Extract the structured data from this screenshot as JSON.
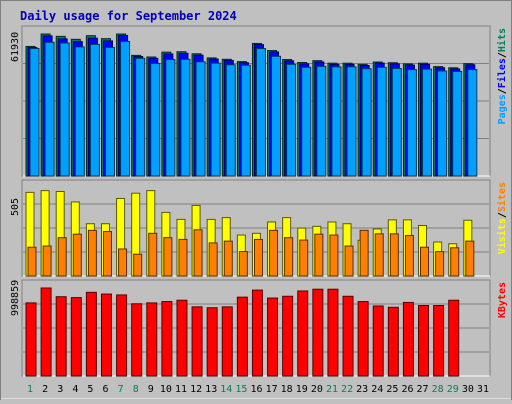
{
  "chart_data": {
    "type": "bar",
    "title": "Daily usage for September 2024",
    "categories": [
      "1",
      "2",
      "3",
      "4",
      "5",
      "6",
      "7",
      "8",
      "9",
      "10",
      "11",
      "12",
      "13",
      "14",
      "15",
      "16",
      "17",
      "18",
      "19",
      "20",
      "21",
      "22",
      "23",
      "24",
      "25",
      "26",
      "27",
      "28",
      "29",
      "30",
      "31"
    ],
    "weekend_days": [
      "1",
      "7",
      "8",
      "14",
      "15",
      "21",
      "22",
      "28",
      "29"
    ],
    "panels": [
      {
        "id": "pages-files-hits",
        "ymax_label": "61930",
        "ymax": 61930,
        "legend": [
          {
            "text": "Pages",
            "color": "#00a0ff"
          },
          {
            "text": "Files",
            "color": "#0000ff"
          },
          {
            "text": "Hits",
            "color": "#00805c"
          }
        ],
        "series": [
          {
            "name": "Hits",
            "color": "#00805c",
            "values": [
              56500,
              61930,
              60900,
              59600,
              61200,
              59900,
              61930,
              52600,
              51900,
              54000,
              54200,
              53300,
              51500,
              50900,
              49900,
              57800,
              54700,
              50800,
              49500,
              50300,
              49200,
              49200,
              48700,
              49700,
              49400,
              48900,
              49200,
              47700,
              47200,
              49000,
              0
            ]
          },
          {
            "name": "Files",
            "color": "#0000ff",
            "values": [
              56000,
              61100,
              59800,
              58600,
              60100,
              58900,
              61300,
              52100,
              51300,
              53200,
              53500,
              52700,
              51000,
              50400,
              49400,
              57300,
              54100,
              50200,
              48900,
              49700,
              48700,
              48700,
              48200,
              49200,
              48900,
              48400,
              48700,
              47200,
              46700,
              48500,
              0
            ]
          },
          {
            "name": "Pages",
            "color": "#00a0ff",
            "values": [
              55600,
              58300,
              58000,
              56300,
              57400,
              56100,
              58700,
              51300,
              49100,
              50800,
              50900,
              49800,
              49200,
              48500,
              48300,
              55600,
              52200,
              48700,
              47400,
              47800,
              47600,
              47600,
              46800,
              47400,
              46900,
              46400,
              46600,
              45800,
              45600,
              46400,
              0
            ]
          }
        ]
      },
      {
        "id": "visits-sites",
        "ymax_label": "505",
        "ymax": 505,
        "legend": [
          {
            "text": "Visits",
            "color": "#ffff00"
          },
          {
            "text": "Sites",
            "color": "#ff8000"
          }
        ],
        "series": [
          {
            "name": "Visits",
            "color": "#ffff00",
            "values": [
              480,
              490,
              485,
              425,
              300,
              300,
              445,
              475,
              490,
              365,
              325,
              405,
              325,
              335,
              235,
              245,
              310,
              335,
              275,
              285,
              310,
              300,
              205,
              270,
              322,
              322,
              290,
              195,
              185,
              320,
              0
            ]
          },
          {
            "name": "Sites",
            "color": "#ff8000",
            "values": [
              165,
              172,
              220,
              240,
              262,
              255,
              155,
              125,
              245,
              220,
              210,
              265,
              190,
              200,
              140,
              210,
              262,
              220,
              206,
              240,
              235,
              172,
              262,
              242,
              242,
              232,
              165,
              140,
              162,
              200,
              0
            ]
          }
        ]
      },
      {
        "id": "kbytes",
        "ymax_label": "998859",
        "ymax": 998859,
        "legend": [
          {
            "text": "KBytes",
            "color": "#ff0000"
          }
        ],
        "series": [
          {
            "name": "KBytes",
            "color": "#ff0000",
            "values": [
              830000,
              998859,
              900000,
              890000,
              950000,
              930000,
              920000,
              820000,
              830000,
              845000,
              860000,
              785000,
              775000,
              785000,
              895000,
              975000,
              885000,
              905000,
              965000,
              985000,
              985000,
              905000,
              845000,
              795000,
              780000,
              835000,
              800000,
              800000,
              860000,
              0,
              0
            ]
          }
        ]
      }
    ]
  }
}
